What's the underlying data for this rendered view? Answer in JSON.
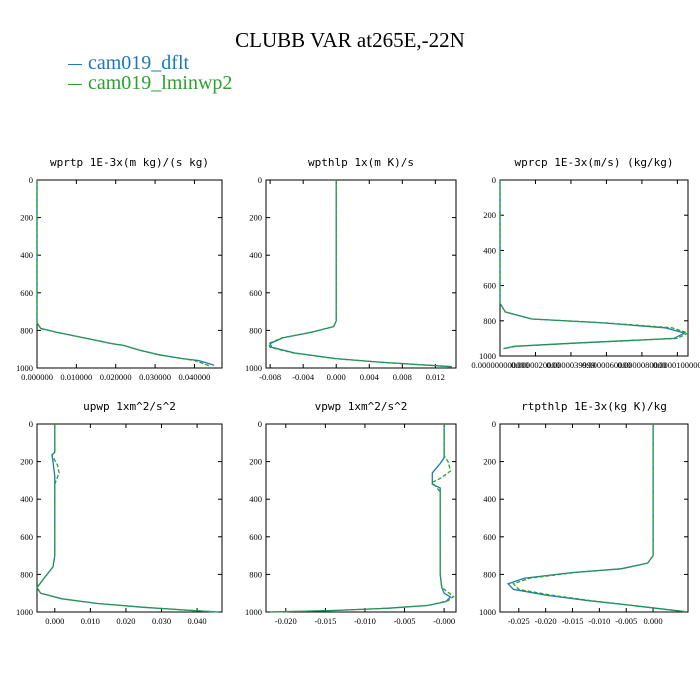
{
  "title": "CLUBB VAR at265E,-22N",
  "legend": [
    {
      "label": "cam019_dflt",
      "color": "#1f77b4"
    },
    {
      "label": "cam019_lminwp2",
      "color": "#2ca02c"
    }
  ],
  "chart_data": [
    {
      "type": "line",
      "title": "wprtp  1E-3x(m kg)/(s kg)",
      "xlim": [
        0,
        0.047
      ],
      "ylim": [
        1000,
        0
      ],
      "xticks": [
        0,
        0.01,
        0.02,
        0.03,
        0.04
      ],
      "xtick_labels": [
        "0.000000",
        "0.010000",
        "0.020000",
        "0.030000",
        "0.040000"
      ],
      "yticks": [
        0,
        200,
        400,
        600,
        800,
        1000
      ],
      "series": [
        {
          "name": "cam019_dflt",
          "x": [
            0,
            0,
            0.001,
            0.005,
            0.012,
            0.019,
            0.022,
            0.026,
            0.031,
            0.037,
            0.041,
            0.043,
            0.045
          ],
          "y": [
            0,
            760,
            790,
            810,
            840,
            870,
            880,
            905,
            930,
            950,
            960,
            972,
            985
          ]
        },
        {
          "name": "cam019_lminwp2",
          "x": [
            0,
            0,
            0.001,
            0.005,
            0.012,
            0.019,
            0.022,
            0.026,
            0.031,
            0.037,
            0.04,
            0.042,
            0.044
          ],
          "y": [
            0,
            760,
            790,
            810,
            840,
            870,
            880,
            905,
            930,
            950,
            960,
            975,
            990
          ]
        }
      ]
    },
    {
      "type": "line",
      "title": "wpthlp  1x(m K)/s",
      "xlim": [
        -0.0085,
        0.0145
      ],
      "ylim": [
        1000,
        0
      ],
      "xticks": [
        -0.008,
        -0.004,
        0,
        0.004,
        0.008,
        0.012
      ],
      "xtick_labels": [
        "-0.008",
        "-0.004",
        "0.000",
        "0.004",
        "0.008",
        "0.012"
      ],
      "yticks": [
        0,
        200,
        400,
        600,
        800,
        1000
      ],
      "series": [
        {
          "name": "cam019_dflt",
          "x": [
            0,
            0,
            -0.0003,
            -0.003,
            -0.0065,
            -0.008,
            -0.0078,
            -0.005,
            0.0,
            0.005,
            0.01,
            0.014
          ],
          "y": [
            0,
            750,
            780,
            810,
            840,
            870,
            890,
            920,
            950,
            968,
            982,
            993
          ]
        },
        {
          "name": "cam019_lminwp2",
          "x": [
            0,
            0,
            -0.0003,
            -0.003,
            -0.0066,
            -0.0082,
            -0.008,
            -0.0052,
            -0.0002,
            0.005,
            0.01,
            0.014
          ],
          "y": [
            0,
            750,
            780,
            810,
            840,
            870,
            890,
            920,
            950,
            968,
            982,
            993
          ]
        }
      ]
    },
    {
      "type": "line",
      "title": "wprcp  1E-3x(m/s) (kg/kg)",
      "xlim": [
        0,
        1.06e-05
      ],
      "ylim": [
        1000,
        0
      ],
      "xticks": [
        0,
        2e-06,
        4e-06,
        6e-06,
        8e-06,
        1e-05
      ],
      "xtick_labels": [
        "0.000000000000",
        "0.0000020000",
        "0.0000039999",
        "0.0000060000",
        "0.0000080000",
        "0.0000100000"
      ],
      "yticks": [
        0,
        200,
        400,
        600,
        800,
        1000
      ],
      "series": [
        {
          "name": "cam019_dflt",
          "x": [
            0,
            0,
            3e-07,
            1.8e-06,
            5.8e-06,
            9.3e-06,
            1.04e-05,
            9.8e-06,
            4.5e-06,
            8e-07,
            2e-07
          ],
          "y": [
            0,
            700,
            750,
            790,
            812,
            840,
            870,
            900,
            925,
            945,
            958
          ]
        },
        {
          "name": "cam019_lminwp2",
          "x": [
            0,
            0,
            3e-07,
            1.8e-06,
            6e-06,
            9.7e-06,
            1.06e-05,
            1e-05,
            4.7e-06,
            9e-07,
            2e-07
          ],
          "y": [
            0,
            700,
            750,
            790,
            812,
            840,
            870,
            900,
            925,
            945,
            958
          ]
        }
      ]
    },
    {
      "type": "line",
      "title": "upwp  1xm^2/s^2",
      "xlim": [
        -0.005,
        0.047
      ],
      "ylim": [
        1000,
        0
      ],
      "xticks": [
        0,
        0.01,
        0.02,
        0.03,
        0.04
      ],
      "xtick_labels": [
        "0.000",
        "0.010",
        "0.020",
        "0.030",
        "0.040"
      ],
      "yticks": [
        0,
        200,
        400,
        600,
        800,
        1000
      ],
      "series": [
        {
          "name": "cam019_dflt",
          "x": [
            0.0,
            0.0,
            -0.0008,
            -0.0005,
            0.0,
            0.0,
            -0.0005,
            -0.003,
            -0.005,
            -0.004,
            0.002,
            0.012,
            0.025,
            0.037,
            0.046
          ],
          "y": [
            0,
            150,
            165,
            200,
            280,
            700,
            760,
            820,
            870,
            900,
            930,
            955,
            975,
            990,
            1000
          ]
        },
        {
          "name": "cam019_lminwp2",
          "x": [
            0.0,
            0.0,
            -0.0008,
            0.0008,
            0.0012,
            0.0,
            0.0,
            -0.0005,
            -0.003,
            -0.005,
            -0.004,
            0.002,
            0.012,
            0.025,
            0.037,
            0.046
          ],
          "y": [
            0,
            150,
            165,
            220,
            260,
            320,
            700,
            760,
            820,
            870,
            900,
            930,
            955,
            975,
            990,
            1000
          ]
        }
      ]
    },
    {
      "type": "line",
      "title": "vpwp  1xm^2/s^2",
      "xlim": [
        -0.0225,
        0.0015
      ],
      "ylim": [
        1000,
        0
      ],
      "xticks": [
        -0.02,
        -0.015,
        -0.01,
        -0.005,
        0
      ],
      "xtick_labels": [
        "-0.020",
        "-0.015",
        "-0.010",
        "-0.005",
        "-0.000"
      ],
      "yticks": [
        0,
        200,
        400,
        600,
        800,
        1000
      ],
      "series": [
        {
          "name": "cam019_dflt",
          "x": [
            0.0,
            0.0,
            -0.0005,
            -0.0015,
            -0.0015,
            -0.0005,
            -0.0005,
            -0.0003,
            0.0,
            0.0008,
            0.0002,
            -0.002,
            -0.007,
            -0.014,
            -0.022
          ],
          "y": [
            0,
            180,
            210,
            260,
            320,
            340,
            800,
            870,
            900,
            920,
            945,
            965,
            980,
            992,
            1000
          ]
        },
        {
          "name": "cam019_lminwp2",
          "x": [
            0.0,
            0.0,
            0.0005,
            0.0008,
            -0.0005,
            -0.0015,
            -0.0008,
            -0.0005,
            -0.0005,
            -0.0003,
            0.0005,
            0.0012,
            0.0005,
            -0.002,
            -0.007,
            -0.014,
            -0.022
          ],
          "y": [
            0,
            170,
            200,
            250,
            290,
            310,
            345,
            360,
            800,
            870,
            895,
            918,
            940,
            965,
            980,
            992,
            1000
          ]
        }
      ]
    },
    {
      "type": "line",
      "title": "rtpthlp  1E-3x(kg K)/kg",
      "xlim": [
        -0.0285,
        0.0065
      ],
      "ylim": [
        1000,
        0
      ],
      "xticks": [
        -0.025,
        -0.02,
        -0.015,
        -0.01,
        -0.005,
        0
      ],
      "xtick_labels": [
        "-0.025",
        "-0.020",
        "-0.015",
        "-0.010",
        "-0.005",
        "0.000"
      ],
      "yticks": [
        0,
        200,
        400,
        600,
        800,
        1000
      ],
      "series": [
        {
          "name": "cam019_dflt",
          "x": [
            0,
            0,
            -0.001,
            -0.006,
            -0.015,
            -0.024,
            -0.027,
            -0.026,
            -0.02,
            -0.012,
            -0.004,
            0.002,
            0.006
          ],
          "y": [
            0,
            700,
            740,
            770,
            790,
            820,
            850,
            880,
            910,
            940,
            965,
            985,
            998
          ]
        },
        {
          "name": "cam019_lminwp2",
          "x": [
            0,
            0,
            -0.001,
            -0.0058,
            -0.0145,
            -0.023,
            -0.026,
            -0.025,
            -0.019,
            -0.0115,
            -0.0038,
            0.002,
            0.006
          ],
          "y": [
            0,
            700,
            740,
            770,
            790,
            820,
            850,
            880,
            910,
            940,
            965,
            985,
            998
          ]
        }
      ]
    }
  ]
}
